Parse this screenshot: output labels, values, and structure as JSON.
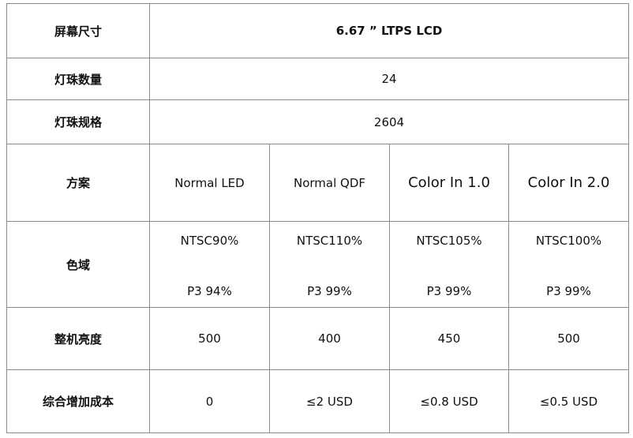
{
  "rows": {
    "screen_size": {
      "label": "屏幕尺寸",
      "value": "6.67 ” LTPS LCD"
    },
    "led_count": {
      "label": "灯珠数量",
      "value": "24"
    },
    "led_spec": {
      "label": "灯珠规格",
      "value": "2604"
    },
    "solution": {
      "label": "方案",
      "values": [
        "Normal LED",
        "Normal QDF",
        "Color In 1.0",
        "Color In 2.0"
      ]
    },
    "gamut": {
      "label": "色域",
      "ntsc": [
        "NTSC90%",
        "NTSC110%",
        "NTSC105%",
        "NTSC100%"
      ],
      "p3": [
        "P3 94%",
        "P3 99%",
        "P3 99%",
        "P3 99%"
      ]
    },
    "brightness": {
      "label": "整机亮度",
      "values": [
        "500",
        "400",
        "450",
        "500"
      ]
    },
    "cost": {
      "label": "综合增加成本",
      "values": [
        "0",
        "≤2 USD",
        "≤0.8 USD",
        "≤0.5 USD"
      ]
    }
  }
}
